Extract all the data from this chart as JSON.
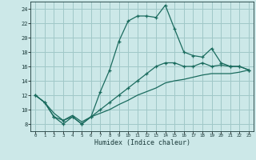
{
  "xlabel": "Humidex (Indice chaleur)",
  "bg_color": "#cce8e8",
  "grid_color": "#a0c8c8",
  "line_color": "#1a6b5e",
  "xlim": [
    -0.5,
    23.5
  ],
  "ylim": [
    7,
    25
  ],
  "xticks": [
    0,
    1,
    2,
    3,
    4,
    5,
    6,
    7,
    8,
    9,
    10,
    11,
    12,
    13,
    14,
    15,
    16,
    17,
    18,
    19,
    20,
    21,
    22,
    23
  ],
  "yticks": [
    8,
    10,
    12,
    14,
    16,
    18,
    20,
    22,
    24
  ],
  "series1_x": [
    0,
    1,
    2,
    3,
    4,
    5,
    6,
    7,
    8,
    9,
    10,
    11,
    12,
    13,
    14,
    15,
    16,
    17,
    18,
    19,
    20,
    21,
    22,
    23
  ],
  "series1_y": [
    12,
    11,
    9,
    8,
    9,
    8,
    9,
    12.5,
    15.5,
    19.5,
    22.3,
    23,
    23,
    22.8,
    24.5,
    21.2,
    18,
    17.5,
    17.3,
    18.5,
    16.5,
    16,
    16,
    15.5
  ],
  "series2_x": [
    0,
    1,
    2,
    3,
    4,
    5,
    6,
    7,
    8,
    9,
    10,
    11,
    12,
    13,
    14,
    15,
    16,
    17,
    18,
    19,
    20,
    21,
    22,
    23
  ],
  "series2_y": [
    12,
    11,
    9,
    8.5,
    9,
    8,
    9,
    10,
    11,
    12,
    13,
    14,
    15,
    16,
    16.5,
    16.5,
    16,
    16,
    16.5,
    16,
    16.2,
    16,
    16,
    15.5
  ],
  "series3_x": [
    0,
    1,
    2,
    3,
    4,
    5,
    6,
    7,
    8,
    9,
    10,
    11,
    12,
    13,
    14,
    15,
    16,
    17,
    18,
    19,
    20,
    21,
    22,
    23
  ],
  "series3_y": [
    12,
    11,
    9.5,
    8.5,
    9.2,
    8.3,
    9,
    9.5,
    10,
    10.7,
    11.3,
    12,
    12.5,
    13,
    13.7,
    14,
    14.2,
    14.5,
    14.8,
    15,
    15,
    15,
    15.2,
    15.5
  ]
}
